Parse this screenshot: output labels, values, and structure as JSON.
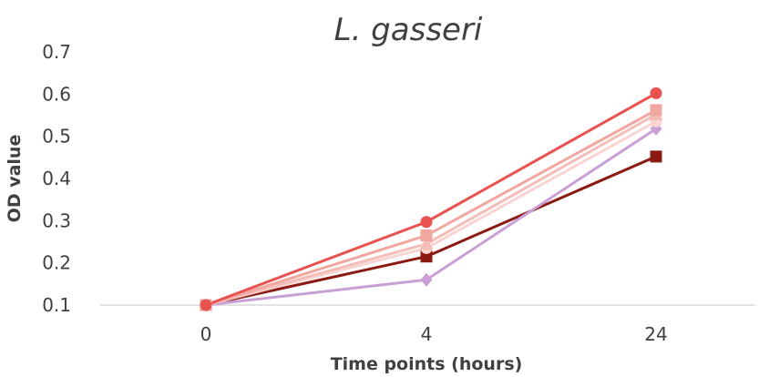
{
  "chart_data": {
    "type": "line",
    "title": "L. gasseri",
    "xlabel": "Time points (hours)",
    "ylabel": "OD value",
    "categories": [
      "0",
      "4",
      "24"
    ],
    "ylim": [
      0.1,
      0.7
    ],
    "yticks": [
      "0.1",
      "0.2",
      "0.3",
      "0.4",
      "0.5",
      "0.6",
      "0.7"
    ],
    "grid": false,
    "series": [
      {
        "values": [
          0.1,
          0.297,
          0.602
        ],
        "color": "#e8524f",
        "marker": "circle"
      },
      {
        "values": [
          0.1,
          0.265,
          0.562
        ],
        "color": "#f2a6a0",
        "marker": "square"
      },
      {
        "values": [
          0.1,
          0.245,
          0.552
        ],
        "color": "#f5bdb8",
        "marker": "triangle"
      },
      {
        "values": [
          0.1,
          0.235,
          0.535
        ],
        "color": "#fad4d0",
        "marker": "circle"
      },
      {
        "values": [
          0.1,
          0.16,
          0.518
        ],
        "color": "#c9a0d6",
        "marker": "diamond"
      },
      {
        "values": [
          0.1,
          0.215,
          0.452
        ],
        "color": "#8b1a12",
        "marker": "square"
      }
    ]
  }
}
